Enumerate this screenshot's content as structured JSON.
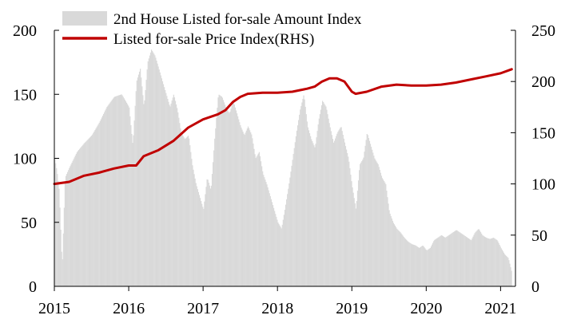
{
  "chart_data": {
    "type": "bar+line",
    "title": "",
    "legend": {
      "placement": "top-left",
      "entries": [
        {
          "label": "2nd House Listed for-sale Amount Index",
          "color": "#d9d9d9",
          "kind": "bar"
        },
        {
          "label": "Listed for-sale Price Index(RHS)",
          "color": "#c00000",
          "kind": "line"
        }
      ]
    },
    "x_axis": {
      "min": 2015.0,
      "max": 2021.2,
      "ticks": [
        2015,
        2016,
        2017,
        2018,
        2019,
        2020,
        2021
      ],
      "tick_labels": [
        "2015",
        "2016",
        "2017",
        "2018",
        "2019",
        "2020",
        "2021"
      ]
    },
    "y_left": {
      "min": 0,
      "max": 200,
      "ticks": [
        0,
        50,
        100,
        150,
        200
      ],
      "tick_labels": [
        "0",
        "50",
        "100",
        "150",
        "200"
      ]
    },
    "y_right": {
      "min": 0,
      "max": 250,
      "ticks": [
        0,
        50,
        100,
        150,
        200,
        250
      ],
      "tick_labels": [
        "0",
        "50",
        "100",
        "150",
        "200",
        "250"
      ]
    },
    "grid": false,
    "bar_series": {
      "name": "2nd House Listed for-sale Amount Index",
      "axis": "left",
      "points": [
        [
          2015.0,
          100
        ],
        [
          2015.03,
          90
        ],
        [
          2015.06,
          75
        ],
        [
          2015.1,
          15
        ],
        [
          2015.14,
          85
        ],
        [
          2015.2,
          93
        ],
        [
          2015.3,
          105
        ],
        [
          2015.4,
          112
        ],
        [
          2015.5,
          118
        ],
        [
          2015.6,
          128
        ],
        [
          2015.7,
          140
        ],
        [
          2015.8,
          148
        ],
        [
          2015.9,
          150
        ],
        [
          2016.0,
          140
        ],
        [
          2016.05,
          110
        ],
        [
          2016.1,
          160
        ],
        [
          2016.15,
          170
        ],
        [
          2016.2,
          140
        ],
        [
          2016.25,
          175
        ],
        [
          2016.3,
          185
        ],
        [
          2016.35,
          180
        ],
        [
          2016.4,
          170
        ],
        [
          2016.45,
          160
        ],
        [
          2016.5,
          150
        ],
        [
          2016.55,
          140
        ],
        [
          2016.6,
          150
        ],
        [
          2016.65,
          138
        ],
        [
          2016.7,
          120
        ],
        [
          2016.75,
          115
        ],
        [
          2016.8,
          118
        ],
        [
          2016.85,
          95
        ],
        [
          2016.9,
          80
        ],
        [
          2016.95,
          70
        ],
        [
          2017.0,
          60
        ],
        [
          2017.05,
          85
        ],
        [
          2017.1,
          75
        ],
        [
          2017.15,
          115
        ],
        [
          2017.2,
          150
        ],
        [
          2017.25,
          148
        ],
        [
          2017.3,
          140
        ],
        [
          2017.35,
          135
        ],
        [
          2017.4,
          145
        ],
        [
          2017.45,
          135
        ],
        [
          2017.5,
          125
        ],
        [
          2017.55,
          118
        ],
        [
          2017.6,
          125
        ],
        [
          2017.65,
          118
        ],
        [
          2017.7,
          100
        ],
        [
          2017.75,
          105
        ],
        [
          2017.8,
          88
        ],
        [
          2017.85,
          80
        ],
        [
          2017.9,
          70
        ],
        [
          2017.95,
          60
        ],
        [
          2018.0,
          50
        ],
        [
          2018.05,
          45
        ],
        [
          2018.1,
          62
        ],
        [
          2018.15,
          80
        ],
        [
          2018.2,
          100
        ],
        [
          2018.25,
          120
        ],
        [
          2018.3,
          138
        ],
        [
          2018.35,
          150
        ],
        [
          2018.4,
          125
        ],
        [
          2018.45,
          115
        ],
        [
          2018.5,
          108
        ],
        [
          2018.55,
          130
        ],
        [
          2018.6,
          145
        ],
        [
          2018.65,
          140
        ],
        [
          2018.7,
          125
        ],
        [
          2018.75,
          112
        ],
        [
          2018.8,
          120
        ],
        [
          2018.85,
          125
        ],
        [
          2018.9,
          112
        ],
        [
          2018.95,
          100
        ],
        [
          2019.0,
          78
        ],
        [
          2019.05,
          60
        ],
        [
          2019.1,
          95
        ],
        [
          2019.15,
          100
        ],
        [
          2019.2,
          120
        ],
        [
          2019.25,
          110
        ],
        [
          2019.3,
          100
        ],
        [
          2019.35,
          95
        ],
        [
          2019.4,
          85
        ],
        [
          2019.45,
          80
        ],
        [
          2019.5,
          58
        ],
        [
          2019.55,
          50
        ],
        [
          2019.6,
          45
        ],
        [
          2019.65,
          42
        ],
        [
          2019.7,
          38
        ],
        [
          2019.75,
          35
        ],
        [
          2019.8,
          33
        ],
        [
          2019.85,
          32
        ],
        [
          2019.9,
          30
        ],
        [
          2019.95,
          32
        ],
        [
          2020.0,
          28
        ],
        [
          2020.05,
          30
        ],
        [
          2020.1,
          36
        ],
        [
          2020.15,
          38
        ],
        [
          2020.2,
          40
        ],
        [
          2020.25,
          38
        ],
        [
          2020.3,
          40
        ],
        [
          2020.35,
          42
        ],
        [
          2020.4,
          44
        ],
        [
          2020.45,
          42
        ],
        [
          2020.5,
          40
        ],
        [
          2020.55,
          38
        ],
        [
          2020.6,
          36
        ],
        [
          2020.65,
          42
        ],
        [
          2020.7,
          45
        ],
        [
          2020.75,
          40
        ],
        [
          2020.8,
          38
        ],
        [
          2020.85,
          37
        ],
        [
          2020.9,
          38
        ],
        [
          2020.95,
          36
        ],
        [
          2021.0,
          30
        ],
        [
          2021.05,
          25
        ],
        [
          2021.1,
          22
        ],
        [
          2021.15,
          10
        ]
      ]
    },
    "line_series": {
      "name": "Listed for-sale Price Index(RHS)",
      "axis": "right",
      "color": "#c00000",
      "points": [
        [
          2015.0,
          100
        ],
        [
          2015.2,
          102
        ],
        [
          2015.4,
          108
        ],
        [
          2015.6,
          111
        ],
        [
          2015.8,
          115
        ],
        [
          2016.0,
          118
        ],
        [
          2016.1,
          118
        ],
        [
          2016.2,
          127
        ],
        [
          2016.4,
          133
        ],
        [
          2016.6,
          142
        ],
        [
          2016.8,
          155
        ],
        [
          2017.0,
          163
        ],
        [
          2017.2,
          168
        ],
        [
          2017.3,
          172
        ],
        [
          2017.4,
          180
        ],
        [
          2017.5,
          185
        ],
        [
          2017.6,
          188
        ],
        [
          2017.8,
          189
        ],
        [
          2018.0,
          189
        ],
        [
          2018.2,
          190
        ],
        [
          2018.4,
          193
        ],
        [
          2018.5,
          195
        ],
        [
          2018.6,
          200
        ],
        [
          2018.7,
          203
        ],
        [
          2018.8,
          203
        ],
        [
          2018.9,
          200
        ],
        [
          2019.0,
          190
        ],
        [
          2019.05,
          188
        ],
        [
          2019.2,
          190
        ],
        [
          2019.4,
          195
        ],
        [
          2019.6,
          197
        ],
        [
          2019.8,
          196
        ],
        [
          2020.0,
          196
        ],
        [
          2020.2,
          197
        ],
        [
          2020.4,
          199
        ],
        [
          2020.6,
          202
        ],
        [
          2020.8,
          205
        ],
        [
          2021.0,
          208
        ],
        [
          2021.15,
          212
        ]
      ]
    }
  }
}
